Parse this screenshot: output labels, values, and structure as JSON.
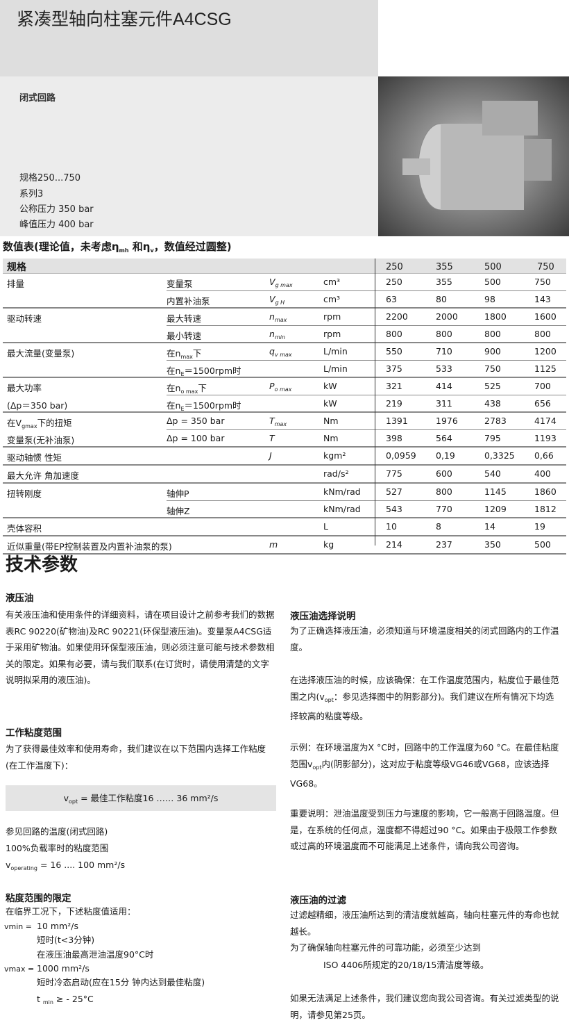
{
  "header": {
    "title": "紧凑型轴向柱塞元件A4CSG",
    "subtitle": "闭式回路",
    "specs": [
      "规格250...750",
      "系列3",
      "公称压力 350 bar",
      "峰值压力 400 bar"
    ]
  },
  "table": {
    "title": {
      "a": "数值表(理论值，未考虑η",
      "s1": "mh",
      "b": " 和η",
      "s2": "v",
      "c": "，数值经过圆整)"
    },
    "header_label": "规格",
    "sizes": [
      "250",
      "355",
      "500",
      "750"
    ],
    "groups": [
      {
        "label": "排量",
        "rows": [
          {
            "sub": "变量泵",
            "sym": "V",
            "symsub": "g max",
            "unit": "cm³",
            "values": [
              "250",
              "355",
              "500",
              "750"
            ]
          },
          {
            "sub": "内置补油泵",
            "sym": "V",
            "symsub": "g H",
            "unit": "cm³",
            "values": [
              "63",
              "80",
              "98",
              "143"
            ]
          }
        ]
      },
      {
        "label": "驱动转速",
        "rows": [
          {
            "sub": "最大转速",
            "sym": "n",
            "symsub": "max",
            "unit": "rpm",
            "values": [
              "2200",
              "2000",
              "1800",
              "1600"
            ]
          },
          {
            "sub": "最小转速",
            "sym": "n",
            "symsub": "min",
            "unit": "rpm",
            "values": [
              "800",
              "800",
              "800",
              "800"
            ]
          }
        ]
      },
      {
        "label": "最大流量(变量泵)",
        "rows": [
          {
            "sub": "在n",
            "subsub": "max",
            "subafter": "下",
            "sym": "q",
            "symsub": "v max",
            "unit": "L/min",
            "values": [
              "550",
              "710",
              "900",
              "1200"
            ]
          },
          {
            "sub": "在n",
            "subsub": "E",
            "subafter": "＝1500rpm时",
            "unit": "L/min",
            "values": [
              "375",
              "533",
              "750",
              "1125"
            ]
          }
        ]
      },
      {
        "label": "最大功率",
        "label2": "(Δp＝350 bar)",
        "rows": [
          {
            "sub": "在n",
            "subsub": "o max",
            "subafter": "下",
            "sym": "P",
            "symsub": "o max",
            "unit": "kW",
            "values": [
              "321",
              "414",
              "525",
              "700"
            ]
          },
          {
            "sub": "在n",
            "subsub": "E",
            "subafter": "＝1500rpm时",
            "unit": "kW",
            "values": [
              "219",
              "311",
              "438",
              "656"
            ]
          }
        ]
      },
      {
        "label": "在V",
        "labelsub": "gmax",
        "labelafter": "下的扭矩",
        "label2": "变量泵(无补油泵)",
        "rows": [
          {
            "sub": "Δp = 350 bar",
            "sym": "T",
            "symsub": "max",
            "unit": "Nm",
            "values": [
              "1391",
              "1976",
              "2783",
              "4174"
            ]
          },
          {
            "sub": "Δp = 100 bar",
            "sym": "T",
            "unit": "Nm",
            "values": [
              "398",
              "564",
              "795",
              "1193"
            ]
          }
        ]
      },
      {
        "label": "驱动轴惯 性矩",
        "rows": [
          {
            "sym": "J",
            "unit": "kgm²",
            "values": [
              "0,0959",
              "0,19",
              "0,3325",
              "0,66"
            ]
          }
        ]
      },
      {
        "label": "最大允许 角加速度",
        "rows": [
          {
            "unit": "rad/s²",
            "values": [
              "775",
              "600",
              "540",
              "400"
            ]
          }
        ]
      },
      {
        "label": "扭转刚度",
        "rows": [
          {
            "sub": "轴伸P",
            "unit": "kNm/rad",
            "values": [
              "527",
              "800",
              "1145",
              "1860"
            ]
          },
          {
            "sub": "轴伸Z",
            "unit": "kNm/rad",
            "values": [
              "543",
              "770",
              "1209",
              "1812"
            ]
          }
        ]
      },
      {
        "label": "壳体容积",
        "rows": [
          {
            "unit": "L",
            "values": [
              "10",
              "8",
              "14",
              "19"
            ]
          }
        ]
      },
      {
        "label": "近似重量(带EP控制装置及内置补油泵的泵)",
        "rows": [
          {
            "sym": "m",
            "unit": "kg",
            "values": [
              "214",
              "237",
              "350",
              "500"
            ]
          }
        ]
      }
    ]
  },
  "tech": {
    "heading": "技术参数",
    "oil_heading": "液压油",
    "oil_text": "有关液压油和使用条件的详细资料，请在项目设计之前参考我们的数据表RC 90220(矿物油)及RC 90221(环保型液压油)。变量泵A4CSG适于采用矿物油。如果使用环保型液压油，则必须注意可能与技术参数相关的限定。如果有必要，请与我们联系(在订货时，请使用清楚的文字说明拟采用的液压油)。",
    "visc_heading": "工作粘度范围",
    "visc_text": "为了获得最佳效率和使用寿命，我们建议在以下范围内选择工作粘度(在工作温度下)：",
    "box": {
      "a": "v",
      "s": "opt",
      "b": " = 最佳工作粘度16 …… 36 mm²/s"
    },
    "ref1": "参见回路的温度(闭式回路)",
    "ref2": "100%负载率时的粘度范围",
    "ref3": {
      "a": "v",
      "s": "operating",
      "b": " = 16 .... 100 mm²/s"
    },
    "limit_heading": "粘度范围的限定",
    "limit_intro": "在临界工况下，下述粘度值适用：",
    "vmin_label": "vmin =",
    "vmin_value": "10 mm²/s",
    "vmin_note1": "短时(t<3分钟)",
    "vmin_note2": "在液压油最高泄油温度90°C时",
    "vmax_label": "vmax =",
    "vmax_value": "1000 mm²/s",
    "vmax_note1": "短时冷态启动(应在15分 钟内达到最佳粘度)",
    "tmin": {
      "a": "t ",
      "s": "min",
      "b": " ≥ - 25°C"
    },
    "sel_heading": "液压油选择说明",
    "sel_p1": "为了正确选择液压油，必须知道与环境温度相关的闭式回路内的工作温度。",
    "sel_p2": {
      "a": "在选择液压油的时候，应该确保：在工作温度范围内，粘度位于最佳范围之内(v",
      "s": "opt",
      "b": "：参见选择图中的阴影部分)。我们建议在所有情况下均选择较高的粘度等级。"
    },
    "sel_p3": {
      "a": "示例：在环境温度为X °C时，回路中的工作温度为60 °C。在最佳粘度范围v",
      "s": "opt",
      "b": "内(阴影部分)，这对应于粘度等级VG46或VG68，应该选择VG68。"
    },
    "sel_p4": "重要说明：泄油温度受到压力与速度的影响，它一般高于回路温度。但是，在系统的任何点，温度都不得超过90 °C。如果由于极限工作参数或过高的环境温度而不可能满足上述条件，请向我公司咨询。",
    "filter_heading": "液压油的过滤",
    "filter_p1": "过滤越精细，液压油所达到的清洁度就越高，轴向柱塞元件的寿命也就越长。",
    "filter_p2": "为了确保轴向柱塞元件的可靠功能，必须至少达到",
    "filter_p3": "ISO 4406所规定的20/18/15清洁度等级。",
    "filter_p4": "如果无法满足上述条件，我们建议您向我公司咨询。有关过滤类型的说明，请参见第25页。"
  }
}
